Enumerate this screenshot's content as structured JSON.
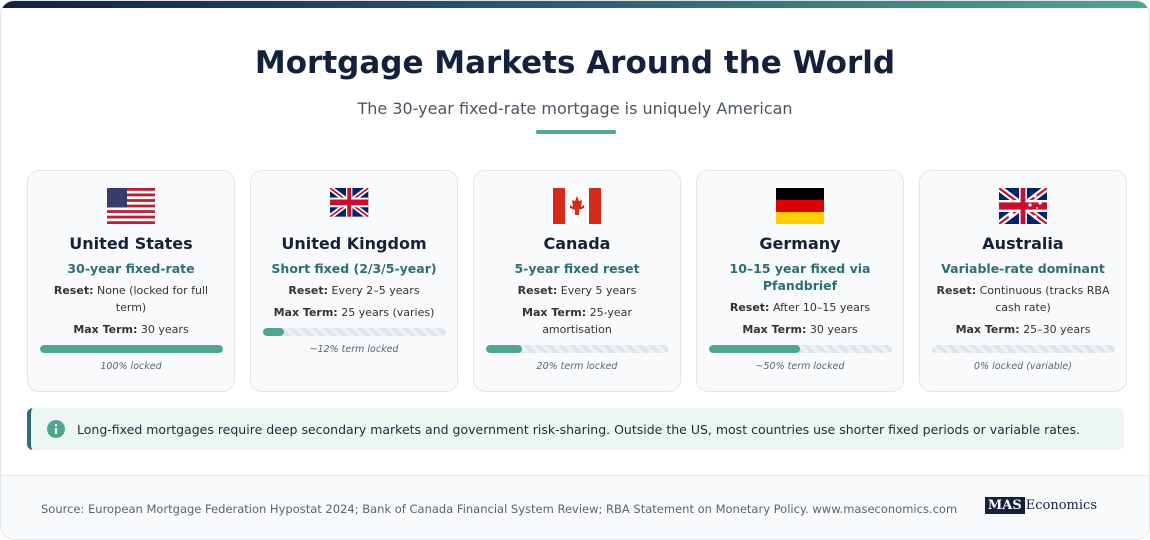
{
  "header": {
    "title": "Mortgage Markets Around the World",
    "subtitle": "The 30-year fixed-rate mortgage is uniquely American"
  },
  "cards": [
    {
      "country": "United States",
      "product": "30-year fixed-rate",
      "reset_label": "Reset:",
      "reset": "None (locked for full term)",
      "term_label": "Max Term:",
      "term": "30 years",
      "locked": 100,
      "locked_label": "100% locked"
    },
    {
      "country": "United Kingdom",
      "product": "Short fixed (2/3/5-year)",
      "reset_label": "Reset:",
      "reset": "Every 2–5 years",
      "term_label": "Max Term:",
      "term": "25 years (varies)",
      "locked": 12,
      "locked_label": "~12% term locked"
    },
    {
      "country": "Canada",
      "product": "5-year fixed reset",
      "reset_label": "Reset:",
      "reset": "Every 5 years",
      "term_label": "Max Term:",
      "term": "25-year amortisation",
      "locked": 20,
      "locked_label": "20% term locked"
    },
    {
      "country": "Germany",
      "product": "10–15 year fixed via Pfandbrief",
      "reset_label": "Reset:",
      "reset": "After 10–15 years",
      "term_label": "Max Term:",
      "term": "30 years",
      "locked": 50,
      "locked_label": "~50% term locked"
    },
    {
      "country": "Australia",
      "product": "Variable-rate dominant",
      "reset_label": "Reset:",
      "reset": "Continuous (tracks RBA cash rate)",
      "term_label": "Max Term:",
      "term": "25–30 years",
      "locked": 0,
      "locked_label": "0% locked (variable)"
    }
  ],
  "note": "Long-fixed mortgages require deep secondary markets and government risk-sharing. Outside the US, most countries use shorter fixed periods or variable rates.",
  "footer": {
    "source": "Source: European Mortgage Federation Hypostat 2024; Bank of Canada Financial System Review; RBA Statement on Monetary Policy. www.maseconomics.com",
    "logo_mas": "MAS",
    "logo_rest": "Economics"
  }
}
